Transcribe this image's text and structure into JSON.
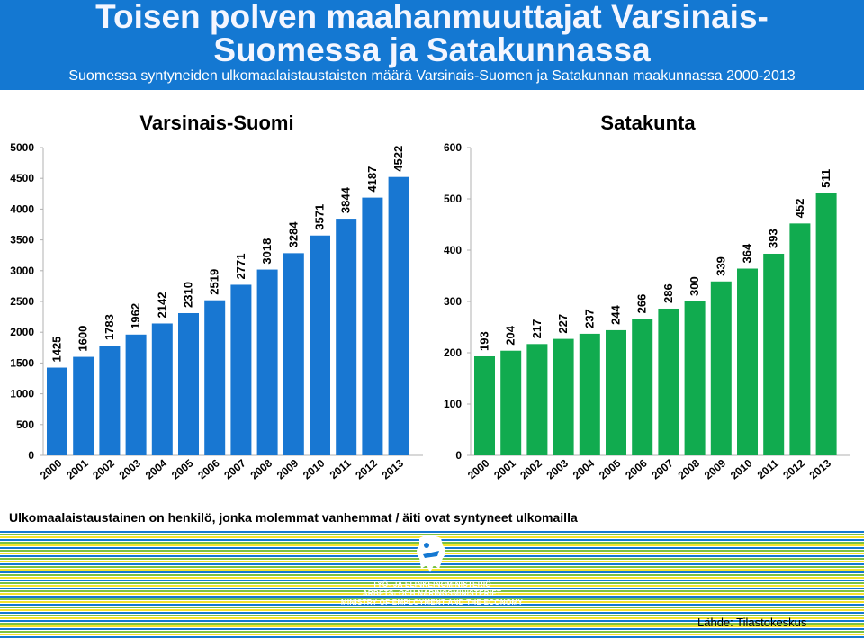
{
  "title_line1": "Toisen polven maahanmuuttajat Varsinais-",
  "title_line2": "Suomessa ja Satakunnassa",
  "subtitle": "Suomessa syntyneiden ulkomaalaistaustaisten määrä Varsinais-Suomen ja Satakunnan maakunnassa 2000-2013",
  "footnote": "Ulkomaalaistaustainen on henkilö, jonka molemmat vanhemmat / äiti ovat syntyneet ulkomailla",
  "source": "Lähde: Tilastokeskus",
  "ministry": {
    "line1": "TYÖ- JA ELINKEINOMINISTERIÖ",
    "line2": "ARBETS- OCH NÄRINGSMINISTERIET",
    "line3": "MINISTRY OF EMPLOYMENT AND THE ECONOMY"
  },
  "logo_icon": "lion-coat-of-arms-icon",
  "colors": {
    "header_bg": "#1478d2",
    "bar_varsinais_suomi": "#1877d2",
    "bar_satakunta": "#11ab4f",
    "stripe_colors": [
      "#1478d2",
      "#7cc242",
      "#f5e32c"
    ]
  },
  "chart_data": [
    {
      "type": "bar",
      "title": "Varsinais-Suomi",
      "categories": [
        "2000",
        "2001",
        "2002",
        "2003",
        "2004",
        "2005",
        "2006",
        "2007",
        "2008",
        "2009",
        "2010",
        "2011",
        "2012",
        "2013"
      ],
      "values": [
        1425,
        1600,
        1783,
        1962,
        2142,
        2310,
        2519,
        2771,
        3018,
        3284,
        3571,
        3844,
        4187,
        4522
      ],
      "ylim": [
        0,
        5000
      ],
      "yticks": [
        0,
        500,
        1000,
        1500,
        2000,
        2500,
        3000,
        3500,
        4000,
        4500,
        5000
      ],
      "grid": false,
      "data_labels": "rotated, above bars"
    },
    {
      "type": "bar",
      "title": "Satakunta",
      "categories": [
        "2000",
        "2001",
        "2002",
        "2003",
        "2004",
        "2005",
        "2006",
        "2007",
        "2008",
        "2009",
        "2010",
        "2011",
        "2012",
        "2013"
      ],
      "values": [
        193,
        204,
        217,
        227,
        237,
        244,
        266,
        286,
        300,
        339,
        364,
        393,
        452,
        511
      ],
      "ylim": [
        0,
        600
      ],
      "yticks": [
        0,
        100,
        200,
        300,
        400,
        500,
        600
      ],
      "grid": false,
      "data_labels": "rotated, above bars"
    }
  ]
}
